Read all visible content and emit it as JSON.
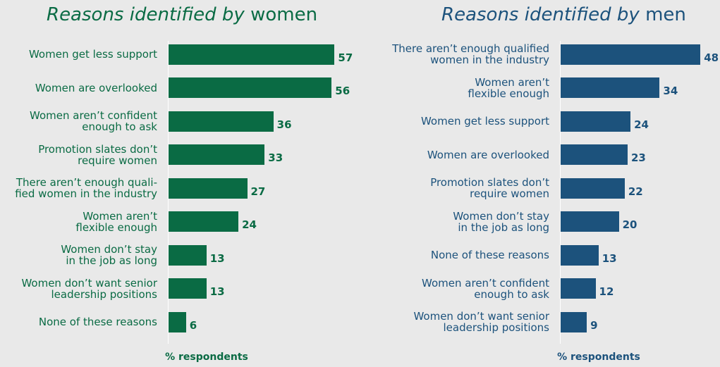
{
  "colors": {
    "women": "#0a6b44",
    "men": "#1c527c",
    "text_women": "#0a6b44",
    "text_men": "#1c527c",
    "background": "#e9e9e9"
  },
  "chart_data": [
    {
      "type": "bar",
      "orientation": "horizontal",
      "title_parts": [
        "Reasons identified by",
        "women"
      ],
      "xlabel": "% respondents",
      "categories": [
        "Women get less support",
        "Women are overlooked",
        "Women aren’t confident\nenough to ask",
        "Promotion slates don’t\nrequire women",
        "There aren’t enough quali-\nfied women in the industry",
        "Women aren’t\nflexible enough",
        "Women don’t stay\nin the job as long",
        "Women don’t want senior\nleadership positions",
        "None of these reasons"
      ],
      "values": [
        57,
        56,
        36,
        33,
        27,
        24,
        13,
        13,
        6
      ],
      "grid": false,
      "legend": "none"
    },
    {
      "type": "bar",
      "orientation": "horizontal",
      "title_parts": [
        "Reasons identified by",
        "men"
      ],
      "xlabel": "% respondents",
      "categories": [
        "There aren’t enough qualified\nwomen in the industry",
        "Women aren’t\nflexible enough",
        "Women get less support",
        "Women are overlooked",
        "Promotion slates don’t\nrequire women",
        "Women don’t stay\nin the job as long",
        "None of these reasons",
        "Women aren’t confident\nenough to ask",
        "Women don’t want senior\nleadership positions"
      ],
      "values": [
        48,
        34,
        24,
        23,
        22,
        20,
        13,
        12,
        9
      ],
      "grid": false,
      "legend": "none"
    }
  ]
}
